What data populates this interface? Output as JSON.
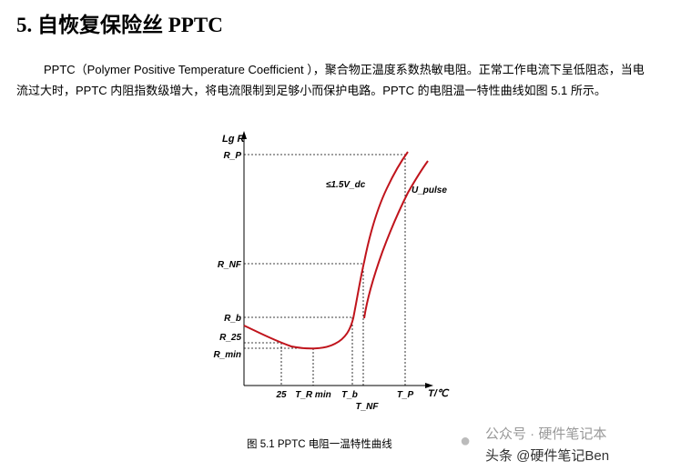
{
  "heading": "5.  自恢复保险丝 PPTC",
  "paragraph": "PPTC（Polymer Positive Temperature Coefficient ），聚合物正温度系数热敏电阻。正常工作电流下呈低阻态，当电流过大时，PPTC 内阻指数级增大，将电流限制到足够小而保护电路。PPTC 的电阻温一特性曲线如图 5.1 所示。",
  "figure": {
    "y_axis_label": "Lg R",
    "x_axis_label": "T/℃",
    "y_ticks": [
      "R_P",
      "R_NF",
      "R_b",
      "R_25",
      "R_min"
    ],
    "x_ticks": [
      "25",
      "T_R min",
      "T_b",
      "T_NF",
      "T_P"
    ],
    "annotation_dc": "≤1.5V_dc",
    "annotation_pulse": "U_pulse",
    "curve_color": "#c0141c",
    "caption": "图 5.1    PPTC 电阻一温特性曲线"
  },
  "watermark": {
    "account": "公众号 · 硬件笔记本",
    "source": "头条 @硬件笔记Ben",
    "icon": "wechat-icon"
  }
}
